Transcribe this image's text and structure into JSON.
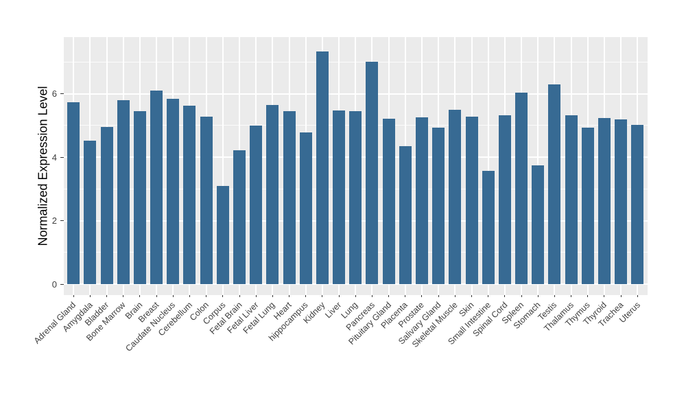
{
  "chart_data": {
    "type": "bar",
    "title": "",
    "xlabel": "",
    "ylabel": "Normalized Expression Level",
    "legend_position": "none",
    "grid": "on",
    "ylim": [
      -0.35,
      7.78
    ],
    "yticks": [
      0,
      2,
      4,
      6
    ],
    "minor_gridlines": [
      1,
      3,
      5,
      7
    ],
    "categories": [
      "Adrenal Gland",
      "Amygdala",
      "Bladder",
      "Bone Marrow",
      "Brain",
      "Breast",
      "Caudate Nucleus",
      "Cerebellum",
      "Colon",
      "Corpus",
      "Fetal Brain",
      "Fetal Liver",
      "Fetal Lung",
      "Heart",
      "hippocampus",
      "Kidney",
      "Liver",
      "Lung",
      "Pancreas",
      "Pituitary Gland",
      "Placenta",
      "Prostate",
      "Salivary Gland",
      "Skeletal Muscle",
      "Skin",
      "Small Intestine",
      "Spinal Cord",
      "Spleen",
      "Stomach",
      "Testis",
      "Thalamus",
      "Thymus",
      "Thyroid",
      "Trachea",
      "Uterus"
    ],
    "values": [
      5.72,
      4.51,
      4.96,
      5.79,
      5.44,
      6.1,
      5.84,
      5.63,
      5.27,
      3.1,
      4.22,
      5.0,
      5.65,
      5.45,
      4.78,
      7.34,
      5.46,
      5.45,
      7.01,
      5.21,
      4.34,
      5.25,
      4.92,
      5.49,
      5.28,
      3.56,
      5.31,
      6.03,
      3.73,
      6.29,
      5.32,
      4.94,
      5.23,
      5.2,
      5.02
    ],
    "colors": {
      "bar": "#376A93",
      "panel_background": "#EBEBEB",
      "gridline": "#FFFFFF",
      "tick_label": "#404040",
      "axis_title": "#000000",
      "page_background": "#FFFFFF"
    }
  }
}
